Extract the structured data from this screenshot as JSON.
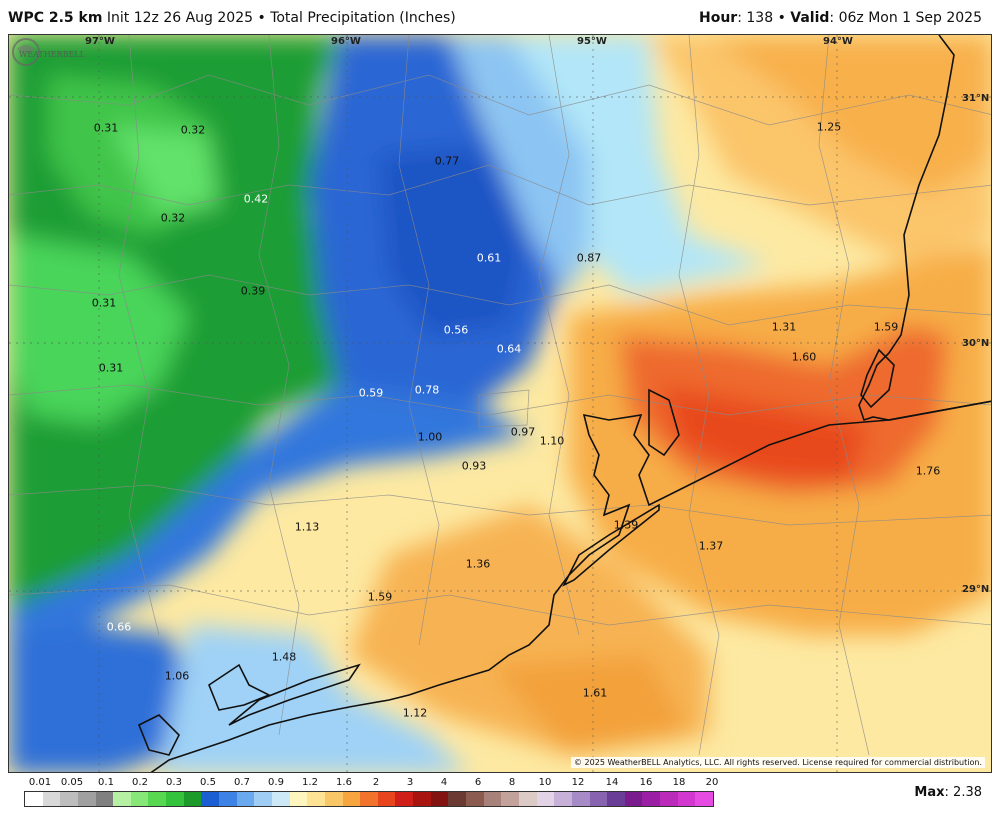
{
  "header": {
    "model": "WPC 2.5 km",
    "init": "Init 12z 26 Aug 2025",
    "sep": "•",
    "product": "Total Precipitation (Inches)",
    "hour_label": "Hour",
    "hour_value": ": 138",
    "valid_label": "Valid",
    "valid_value": ": 06z Mon 1 Sep 2025"
  },
  "map": {
    "lon_labels": [
      "97°W",
      "96°W",
      "95°W",
      "94°W"
    ],
    "lat_labels": [
      "31°N",
      "30°N",
      "29°N"
    ],
    "values": [
      "0.31",
      "0.32",
      "0.42",
      "0.32",
      "0.77",
      "1.25",
      "0.61",
      "0.87",
      "0.31",
      "0.39",
      "0.56",
      "0.64",
      "1.31",
      "1.59",
      "1.60",
      "0.31",
      "0.59",
      "0.78",
      "1.00",
      "0.97",
      "1.10",
      "0.93",
      "1.76",
      "1.13",
      "1.39",
      "1.37",
      "1.36",
      "1.59",
      "0.66",
      "1.48",
      "1.06",
      "1.12",
      "1.61"
    ],
    "copyright": "© 2025 WeatherBELL Analytics, LLC. All rights reserved. License required for commercial distribution.",
    "logo_text": "WEATHERBELL",
    "colors": {
      "green": "#1e9f3a",
      "blue": "#2f6fd6",
      "light_blue": "#a9d8f5",
      "yellow": "#fde9a2",
      "orange": "#f7b550",
      "red": "#e8502a"
    }
  },
  "legend": {
    "labels": [
      "0.01",
      "0.05",
      "0.1",
      "0.2",
      "0.3",
      "0.5",
      "0.7",
      "0.9",
      "1.2",
      "1.6",
      "2",
      "3",
      "4",
      "6",
      "8",
      "10",
      "12",
      "14",
      "16",
      "18",
      "20"
    ],
    "colors": [
      "#ffffff",
      "#d9d9d9",
      "#bdbdbd",
      "#a0a0a0",
      "#808080",
      "#b6f0a2",
      "#87e879",
      "#58d851",
      "#35c23c",
      "#1d9b2a",
      "#1b5fd2",
      "#3d83e6",
      "#6aa9ee",
      "#9fcdf4",
      "#cde9f7",
      "#fff6bf",
      "#fde393",
      "#f9c768",
      "#f7a53f",
      "#f2732c",
      "#e8441e",
      "#d01f18",
      "#a8140f",
      "#831310",
      "#6a3a33",
      "#8b5b50",
      "#a8817a",
      "#c3a29c",
      "#dccac6",
      "#e3d3e6",
      "#c7b1d8",
      "#a78bc7",
      "#8763b0",
      "#6a3e96",
      "#7a1c8e",
      "#9a1fa5",
      "#ba2bba",
      "#d237cf",
      "#e64ce2"
    ],
    "max_label": "Max",
    "max_value": ": 2.38"
  }
}
